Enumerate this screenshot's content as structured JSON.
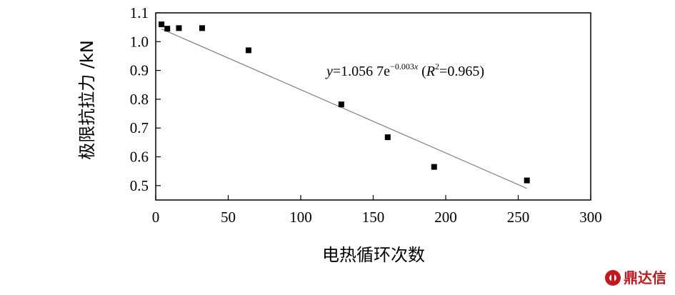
{
  "chart_data": {
    "type": "scatter",
    "xlabel": "电热循环次数",
    "ylabel": "极限抗拉力 /kN",
    "xlim": [
      0,
      300
    ],
    "ylim": [
      0.45,
      1.1
    ],
    "x_ticks": [
      "0",
      "50",
      "100",
      "150",
      "200",
      "250",
      "300"
    ],
    "y_ticks": [
      "0.5",
      "0.6",
      "0.7",
      "0.8",
      "0.9",
      "1.0",
      "1.1"
    ],
    "grid": false,
    "legend": "none",
    "series": [
      {
        "points": [
          {
            "x": 4,
            "y": 1.06
          },
          {
            "x": 8,
            "y": 1.045
          },
          {
            "x": 16,
            "y": 1.047
          },
          {
            "x": 32,
            "y": 1.047
          },
          {
            "x": 64,
            "y": 0.97
          },
          {
            "x": 128,
            "y": 0.782
          },
          {
            "x": 160,
            "y": 0.668
          },
          {
            "x": 192,
            "y": 0.565
          },
          {
            "x": 256,
            "y": 0.518
          }
        ]
      }
    ],
    "trendline": {
      "type": "exponential",
      "a": 1.0567,
      "b": -0.003,
      "x_range": [
        4,
        256
      ]
    },
    "annotation": {
      "y": "y",
      "eq_main": "=1.056 7e",
      "eq_exp": "−0.003",
      "eq_x": "x",
      "eq_open": " (",
      "r": "R",
      "r_sup": "2",
      "r_val": "=0.965)"
    },
    "colors": {
      "marker": "#000000",
      "trendline": "#7f7f7f",
      "axis": "#000000"
    }
  },
  "watermark": {
    "text": "鼎达信",
    "icon": "logo-badge-icon",
    "color": "#c4161c"
  }
}
